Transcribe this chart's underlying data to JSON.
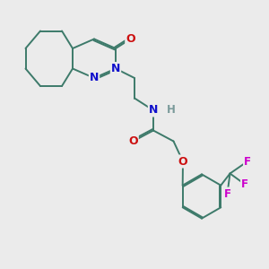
{
  "bg_color": "#ebebeb",
  "bond_color": "#3d7a6a",
  "bond_width": 1.4,
  "atom_colors": {
    "N": "#1010cc",
    "O": "#cc1010",
    "F": "#cc00cc",
    "H": "#7a9a9a",
    "C": "#3d7a6a"
  },
  "font_size": 8.5
}
